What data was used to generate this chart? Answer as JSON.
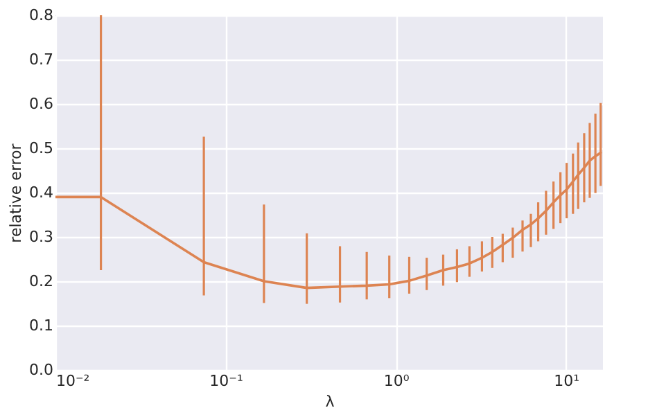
{
  "chart_data": {
    "type": "line",
    "xlabel": "λ",
    "ylabel": "relative error",
    "x": [
      0.01,
      0.0185,
      0.0745,
      0.168,
      0.3,
      0.47,
      0.675,
      0.916,
      1.2,
      1.52,
      1.9,
      2.29,
      2.71,
      3.21,
      3.69,
      4.25,
      4.87,
      5.56,
      6.22,
      6.87,
      7.64,
      8.45,
      9.28,
      10.1,
      11.0,
      11.8,
      12.8,
      13.8,
      14.9,
      16.0
    ],
    "series": [
      {
        "color": "#dd8452",
        "values": [
          0.39,
          0.39,
          0.243,
          0.2,
          0.185,
          0.188,
          0.19,
          0.193,
          0.201,
          0.213,
          0.225,
          0.232,
          0.24,
          0.253,
          0.266,
          0.282,
          0.298,
          0.316,
          0.328,
          0.342,
          0.359,
          0.378,
          0.394,
          0.407,
          0.425,
          0.44,
          0.456,
          0.472,
          0.482,
          0.49
        ],
        "errors": [
          null,
          [
            0.225,
            0.8
          ],
          [
            0.168,
            0.526
          ],
          [
            0.151,
            0.373
          ],
          [
            0.149,
            0.308
          ],
          [
            0.152,
            0.279
          ],
          [
            0.159,
            0.266
          ],
          [
            0.162,
            0.258
          ],
          [
            0.172,
            0.255
          ],
          [
            0.18,
            0.253
          ],
          [
            0.19,
            0.26
          ],
          [
            0.198,
            0.272
          ],
          [
            0.21,
            0.279
          ],
          [
            0.222,
            0.29
          ],
          [
            0.23,
            0.3
          ],
          [
            0.243,
            0.307
          ],
          [
            0.253,
            0.321
          ],
          [
            0.267,
            0.337
          ],
          [
            0.277,
            0.352
          ],
          [
            0.29,
            0.378
          ],
          [
            0.305,
            0.404
          ],
          [
            0.318,
            0.425
          ],
          [
            0.331,
            0.446
          ],
          [
            0.342,
            0.467
          ],
          [
            0.352,
            0.488
          ],
          [
            0.363,
            0.513
          ],
          [
            0.378,
            0.534
          ],
          [
            0.388,
            0.557
          ],
          [
            0.399,
            0.578
          ],
          [
            0.415,
            0.602
          ]
        ]
      }
    ],
    "log": "x",
    "xlim": [
      0.01,
      16.5
    ],
    "xticks": [
      {
        "value": 0.01,
        "label": "10⁻²"
      },
      {
        "value": 0.1,
        "label": "10⁻¹"
      },
      {
        "value": 1,
        "label": "10⁰"
      },
      {
        "value": 10,
        "label": "10¹"
      }
    ],
    "ylim": [
      0,
      0.8
    ],
    "yticks": [
      {
        "value": 0,
        "label": "0.0"
      },
      {
        "value": 0.1,
        "label": "0.1"
      },
      {
        "value": 0.2,
        "label": "0.2"
      },
      {
        "value": 0.3,
        "label": "0.3"
      },
      {
        "value": 0.4,
        "label": "0.4"
      },
      {
        "value": 0.5,
        "label": "0.5"
      },
      {
        "value": 0.6,
        "label": "0.6"
      },
      {
        "value": 0.7,
        "label": "0.7"
      },
      {
        "value": 0.8,
        "label": "0.8"
      }
    ],
    "grid": true,
    "marker": "none",
    "line_style": "solid"
  }
}
